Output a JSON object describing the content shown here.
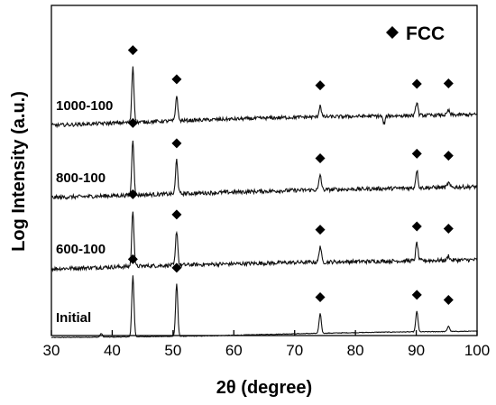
{
  "chart_data": {
    "type": "line",
    "title": "",
    "xlabel": "2θ (degree)",
    "ylabel": "Log Intensity (a.u.)",
    "xlim": [
      30,
      100
    ],
    "xticks": [
      30,
      40,
      50,
      60,
      70,
      80,
      90,
      100
    ],
    "xtick_labels": [
      "30",
      "40",
      "50",
      "60",
      "70",
      "80",
      "90",
      "100"
    ],
    "yticks": [],
    "legend": {
      "label": "FCC",
      "marker": "diamond",
      "position": "top-right"
    },
    "series_order": "bottom-to-top",
    "series": [
      {
        "name": "Initial",
        "offset": 0,
        "baseline": [
          [
            30,
            0.8
          ],
          [
            42,
            1.5
          ],
          [
            55,
            2.5
          ],
          [
            70,
            5.0
          ],
          [
            85,
            6.8
          ],
          [
            100,
            7.8
          ]
        ],
        "noise": 0.35,
        "peaks": [
          [
            38.2,
            4
          ],
          [
            43.4,
            68
          ],
          [
            50.6,
            58
          ],
          [
            74.2,
            22
          ],
          [
            90.1,
            23
          ],
          [
            95.3,
            6
          ]
        ],
        "fcc_markers": [
          43.4,
          50.6,
          74.2,
          90.1,
          95.3
        ]
      },
      {
        "name": "600-100",
        "offset": 78,
        "baseline": [
          [
            30,
            -1
          ],
          [
            50,
            3
          ],
          [
            70,
            6
          ],
          [
            100,
            9
          ]
        ],
        "noise": 2.2,
        "peaks": [
          [
            43.4,
            62
          ],
          [
            50.6,
            38
          ],
          [
            74.2,
            18
          ],
          [
            90.1,
            20
          ],
          [
            95.3,
            5
          ]
        ],
        "fcc_markers": [
          43.4,
          50.6,
          74.2,
          90.1,
          95.3
        ]
      },
      {
        "name": "800-100",
        "offset": 158,
        "baseline": [
          [
            30,
            -2
          ],
          [
            50,
            2
          ],
          [
            70,
            6
          ],
          [
            100,
            10
          ]
        ],
        "noise": 2.2,
        "peaks": [
          [
            43.4,
            62
          ],
          [
            50.6,
            38
          ],
          [
            74.2,
            17
          ],
          [
            90.1,
            20
          ],
          [
            95.3,
            5
          ]
        ],
        "fcc_markers": [
          43.4,
          50.6,
          74.2,
          90.1,
          95.3
        ]
      },
      {
        "name": "1000-100",
        "offset": 238,
        "baseline": [
          [
            30,
            -2
          ],
          [
            50,
            3
          ],
          [
            70,
            7
          ],
          [
            100,
            10
          ]
        ],
        "noise": 2.0,
        "peaks": [
          [
            43.4,
            62
          ],
          [
            50.6,
            28
          ],
          [
            74.2,
            13
          ],
          [
            90.1,
            15
          ],
          [
            95.3,
            5
          ],
          [
            84.7,
            -9
          ]
        ],
        "fcc_markers": [
          43.4,
          50.6,
          74.2,
          90.1,
          95.3
        ]
      }
    ]
  }
}
